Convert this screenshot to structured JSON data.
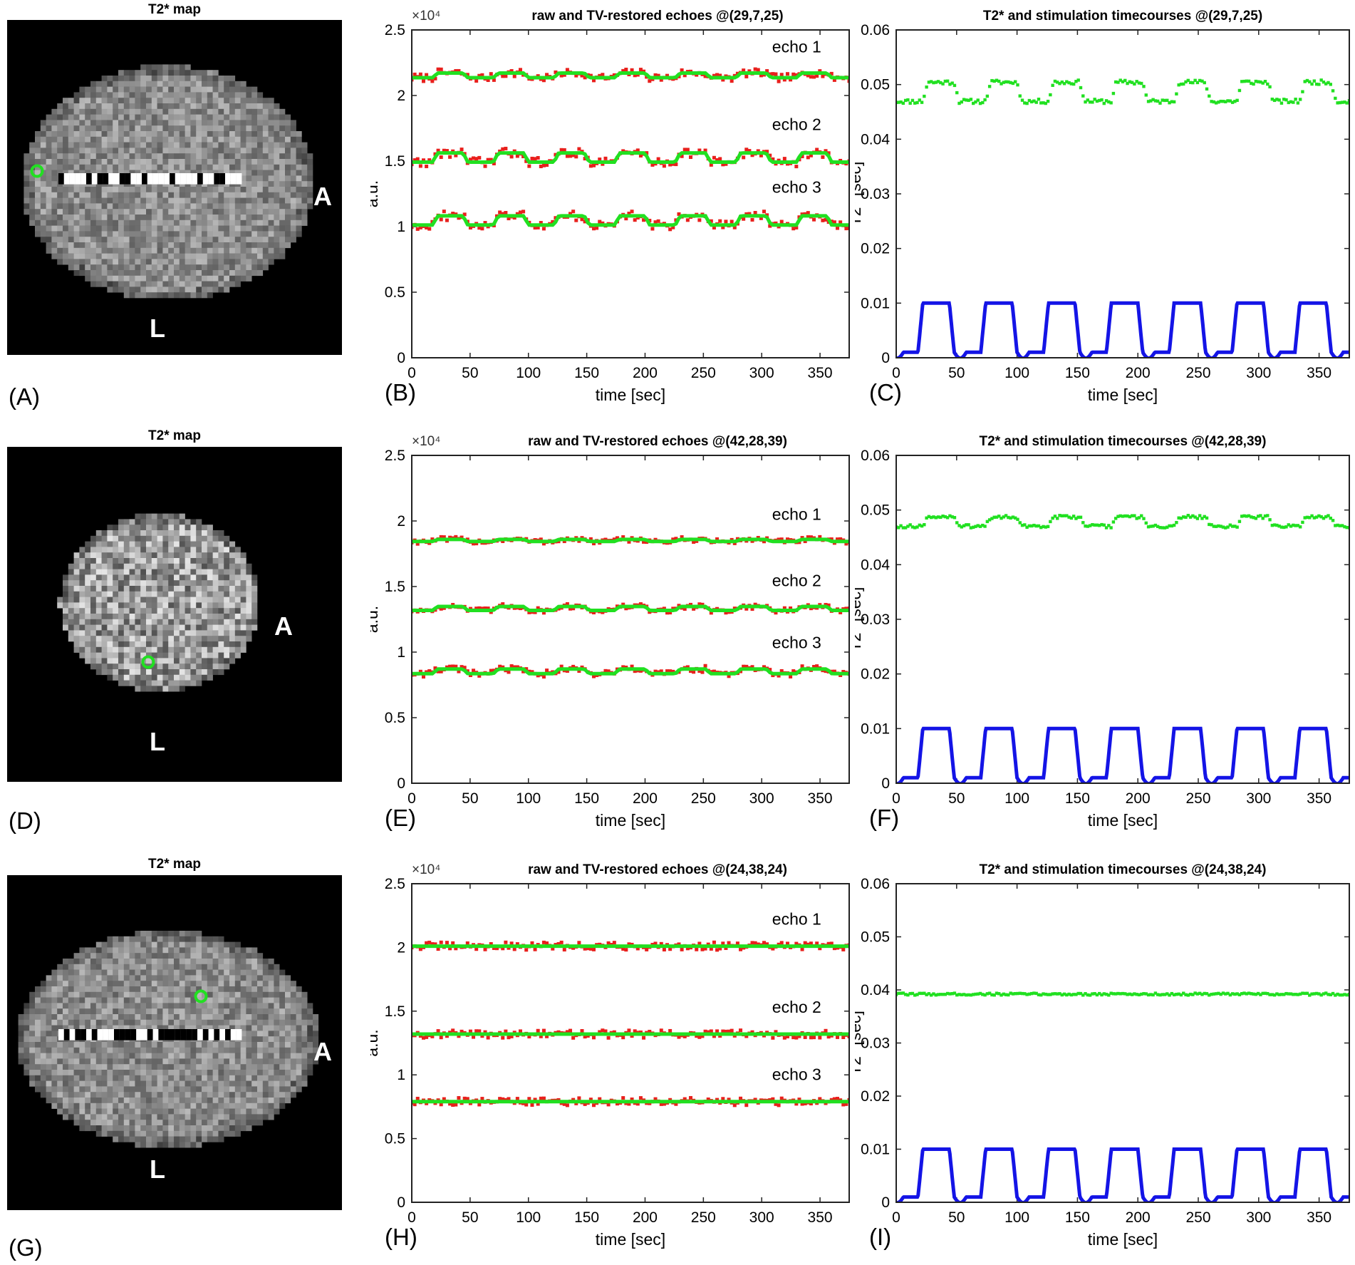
{
  "figure": {
    "rows": [
      {
        "map": {
          "title": "T2* map",
          "label": "(A)",
          "orientation_right": "A",
          "orientation_bottom": "L",
          "colormap": "gray",
          "marker_color": "#21e021"
        },
        "chart_data": [
          {
            "panel": "(B)",
            "type": "line",
            "title": "raw and TV-restored echoes @(29,7,25)",
            "xlabel": "time [sec]",
            "ylabel": "a.u.",
            "y_exponent_label": "×10⁴",
            "xlim": [
              0,
              375
            ],
            "ylim": [
              0,
              2.5
            ],
            "xticks": [
              0,
              50,
              100,
              150,
              200,
              250,
              300,
              350
            ],
            "yticks": [
              0,
              0.5,
              1,
              1.5,
              2,
              2.5
            ],
            "ytick_labels": [
              "0",
              "0.5",
              "1",
              "1.5",
              "2",
              "2.5"
            ],
            "period_sec": 52,
            "series": [
              {
                "name": "echo 1",
                "baseline": 2.15,
                "amplitude": 0.035,
                "noise": 0.03
              },
              {
                "name": "echo 2",
                "baseline": 1.52,
                "amplitude": 0.07,
                "noise": 0.035
              },
              {
                "name": "echo 3",
                "baseline": 1.04,
                "amplitude": 0.07,
                "noise": 0.035
              }
            ],
            "raw_color": "#e8201c",
            "restored_color": "#21e021"
          },
          {
            "panel": "(C)",
            "type": "line",
            "title": "T2* and stimulation timecourses @(29,7,25)",
            "xlabel": "time [sec]",
            "ylabel": "T2* [sec]",
            "xlim": [
              0,
              375
            ],
            "ylim": [
              0,
              0.06
            ],
            "xticks": [
              0,
              50,
              100,
              150,
              200,
              250,
              300,
              350
            ],
            "yticks": [
              0,
              0.01,
              0.02,
              0.03,
              0.04,
              0.05,
              0.06
            ],
            "ytick_labels": [
              "0",
              "0.01",
              "0.02",
              "0.03",
              "0.04",
              "0.05",
              "0.06"
            ],
            "t2star": {
              "baseline": 0.0485,
              "amplitude": 0.0035,
              "noise": 0.0004,
              "color": "#21e021"
            },
            "stimulation": {
              "low": 0.001,
              "high": 0.01,
              "period_sec": 52,
              "on_sec": 26,
              "offset_sec": 18,
              "color": "#1414e6"
            }
          }
        ]
      },
      {
        "map": {
          "title": "T2* map",
          "label": "(D)",
          "orientation_right": "A",
          "orientation_bottom": "L",
          "colormap": "gray",
          "marker_color": "#21e021"
        },
        "chart_data": [
          {
            "panel": "(E)",
            "type": "line",
            "title": "raw and TV-restored echoes @(42,28,39)",
            "xlabel": "time [sec]",
            "ylabel": "a.u.",
            "y_exponent_label": "×10⁴",
            "xlim": [
              0,
              375
            ],
            "ylim": [
              0,
              2.5
            ],
            "xticks": [
              0,
              50,
              100,
              150,
              200,
              250,
              300,
              350
            ],
            "yticks": [
              0,
              0.5,
              1,
              1.5,
              2,
              2.5
            ],
            "ytick_labels": [
              "0",
              "0.5",
              "1",
              "1.5",
              "2",
              "2.5"
            ],
            "period_sec": 52,
            "series": [
              {
                "name": "echo 1",
                "baseline": 1.85,
                "amplitude": 0.015,
                "noise": 0.02
              },
              {
                "name": "echo 2",
                "baseline": 1.33,
                "amplitude": 0.03,
                "noise": 0.02
              },
              {
                "name": "echo 3",
                "baseline": 0.85,
                "amplitude": 0.035,
                "noise": 0.025
              }
            ],
            "raw_color": "#e8201c",
            "restored_color": "#21e021"
          },
          {
            "panel": "(F)",
            "type": "line",
            "title": "T2* and stimulation timecourses @(42,28,39)",
            "xlabel": "time [sec]",
            "ylabel": "T2* [sec]",
            "xlim": [
              0,
              375
            ],
            "ylim": [
              0,
              0.06
            ],
            "xticks": [
              0,
              50,
              100,
              150,
              200,
              250,
              300,
              350
            ],
            "yticks": [
              0,
              0.01,
              0.02,
              0.03,
              0.04,
              0.05,
              0.06
            ],
            "ytick_labels": [
              "0",
              "0.01",
              "0.02",
              "0.03",
              "0.04",
              "0.05",
              "0.06"
            ],
            "t2star": {
              "baseline": 0.0478,
              "amplitude": 0.0017,
              "noise": 0.0003,
              "color": "#21e021"
            },
            "stimulation": {
              "low": 0.001,
              "high": 0.01,
              "period_sec": 52,
              "on_sec": 26,
              "offset_sec": 18,
              "color": "#1414e6"
            }
          }
        ]
      },
      {
        "map": {
          "title": "T2* map",
          "label": "(G)",
          "orientation_right": "A",
          "orientation_bottom": "L",
          "colormap": "gray",
          "marker_color": "#21e021"
        },
        "chart_data": [
          {
            "panel": "(H)",
            "type": "line",
            "title": "raw and TV-restored echoes @(24,38,24)",
            "xlabel": "time [sec]",
            "ylabel": "a.u.",
            "y_exponent_label": "×10⁴",
            "xlim": [
              0,
              375
            ],
            "ylim": [
              0,
              2.5
            ],
            "xticks": [
              0,
              50,
              100,
              150,
              200,
              250,
              300,
              350
            ],
            "yticks": [
              0,
              0.5,
              1,
              1.5,
              2,
              2.5
            ],
            "ytick_labels": [
              "0",
              "0.5",
              "1",
              "1.5",
              "2",
              "2.5"
            ],
            "period_sec": 52,
            "series": [
              {
                "name": "echo 1",
                "baseline": 2.01,
                "amplitude": 0.0,
                "noise": 0.03
              },
              {
                "name": "echo 2",
                "baseline": 1.32,
                "amplitude": 0.0,
                "noise": 0.03
              },
              {
                "name": "echo 3",
                "baseline": 0.79,
                "amplitude": 0.0,
                "noise": 0.03
              }
            ],
            "raw_color": "#e8201c",
            "restored_color": "#21e021"
          },
          {
            "panel": "(I)",
            "type": "line",
            "title": "T2* and stimulation timecourses @(24,38,24)",
            "xlabel": "time [sec]",
            "ylabel": "T2* [sec]",
            "xlim": [
              0,
              375
            ],
            "ylim": [
              0,
              0.06
            ],
            "xticks": [
              0,
              50,
              100,
              150,
              200,
              250,
              300,
              350
            ],
            "yticks": [
              0,
              0.01,
              0.02,
              0.03,
              0.04,
              0.05,
              0.06
            ],
            "ytick_labels": [
              "0",
              "0.01",
              "0.02",
              "0.03",
              "0.04",
              "0.05",
              "0.06"
            ],
            "t2star": {
              "baseline": 0.0392,
              "amplitude": 0.0,
              "noise": 0.0002,
              "color": "#21e021"
            },
            "stimulation": {
              "low": 0.001,
              "high": 0.01,
              "period_sec": 52,
              "on_sec": 26,
              "offset_sec": 18,
              "color": "#1414e6"
            }
          }
        ]
      }
    ]
  }
}
